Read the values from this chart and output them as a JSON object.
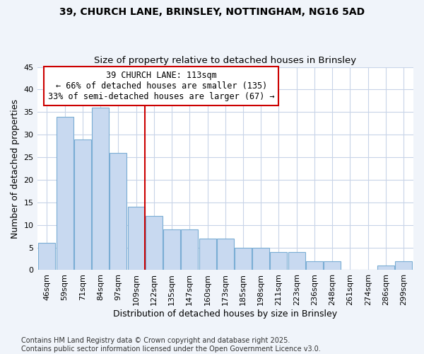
{
  "title1": "39, CHURCH LANE, BRINSLEY, NOTTINGHAM, NG16 5AD",
  "title2": "Size of property relative to detached houses in Brinsley",
  "xlabel": "Distribution of detached houses by size in Brinsley",
  "ylabel": "Number of detached properties",
  "bar_labels": [
    "46sqm",
    "59sqm",
    "71sqm",
    "84sqm",
    "97sqm",
    "109sqm",
    "122sqm",
    "135sqm",
    "147sqm",
    "160sqm",
    "173sqm",
    "185sqm",
    "198sqm",
    "211sqm",
    "223sqm",
    "236sqm",
    "248sqm",
    "261sqm",
    "274sqm",
    "286sqm",
    "299sqm"
  ],
  "bar_values": [
    6,
    34,
    29,
    36,
    26,
    14,
    12,
    9,
    9,
    7,
    7,
    5,
    5,
    4,
    4,
    2,
    2,
    0,
    0,
    1,
    2
  ],
  "bar_color": "#c8d9f0",
  "bar_edgecolor": "#7aadd4",
  "vline_x": 5.5,
  "vline_color": "#cc0000",
  "annotation_title": "39 CHURCH LANE: 113sqm",
  "annotation_line1": "← 66% of detached houses are smaller (135)",
  "annotation_line2": "33% of semi-detached houses are larger (67) →",
  "annotation_box_edgecolor": "#cc0000",
  "ylim": [
    0,
    45
  ],
  "yticks": [
    0,
    5,
    10,
    15,
    20,
    25,
    30,
    35,
    40,
    45
  ],
  "bg_color": "#f0f4fa",
  "plot_bg_color": "#ffffff",
  "grid_color": "#c8d4e8",
  "footer": "Contains HM Land Registry data © Crown copyright and database right 2025.\nContains public sector information licensed under the Open Government Licence v3.0.",
  "title_fontsize": 10,
  "subtitle_fontsize": 9.5,
  "axis_label_fontsize": 9,
  "tick_fontsize": 8,
  "annotation_fontsize": 8.5,
  "footer_fontsize": 7
}
